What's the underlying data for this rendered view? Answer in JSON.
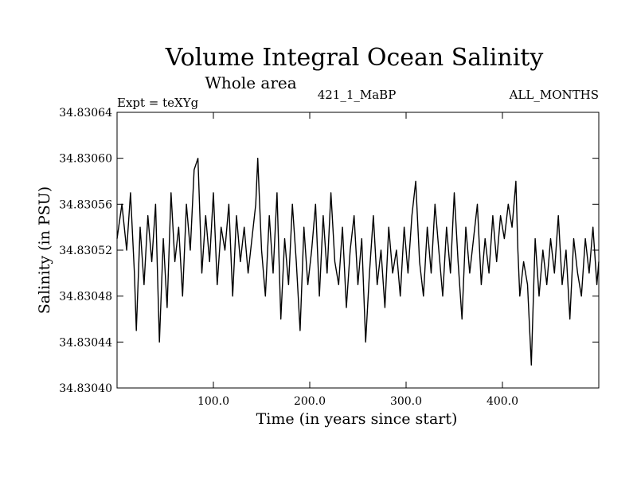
{
  "chart_data": {
    "type": "line",
    "title": "Volume Integral Ocean Salinity",
    "subtitle": "Whole area",
    "header_left": "Expt = teXYg",
    "header_center": "421_1_MaBP",
    "header_right": "ALL_MONTHS",
    "xlabel": "Time (in years since start)",
    "ylabel": "Salinity (in PSU)",
    "xlim": [
      0,
      500
    ],
    "ylim": [
      34.8304,
      34.83064
    ],
    "xticks": [
      100,
      200,
      300,
      400
    ],
    "xtick_labels": [
      "100.0",
      "200.0",
      "300.0",
      "400.0"
    ],
    "yticks": [
      34.8304,
      34.83044,
      34.83048,
      34.83052,
      34.83056,
      34.8306,
      34.83064
    ],
    "ytick_labels": [
      "34.83040",
      "34.83044",
      "34.83048",
      "34.83052",
      "34.83056",
      "34.83060",
      "34.83064"
    ],
    "grid": false,
    "series": [
      {
        "color": "#000000",
        "x": [
          0,
          5,
          10,
          14,
          18,
          20,
          24,
          28,
          32,
          36,
          40,
          44,
          48,
          52,
          56,
          60,
          64,
          68,
          72,
          76,
          80,
          84,
          88,
          92,
          96,
          100,
          104,
          108,
          112,
          116,
          120,
          124,
          128,
          132,
          136,
          140,
          144,
          146,
          150,
          154,
          158,
          162,
          166,
          170,
          174,
          178,
          182,
          186,
          190,
          194,
          198,
          202,
          206,
          210,
          214,
          218,
          222,
          226,
          230,
          234,
          238,
          242,
          246,
          250,
          254,
          258,
          262,
          266,
          270,
          274,
          278,
          282,
          286,
          290,
          294,
          298,
          302,
          306,
          310,
          314,
          318,
          322,
          326,
          330,
          334,
          338,
          342,
          346,
          350,
          354,
          358,
          362,
          366,
          370,
          374,
          378,
          382,
          386,
          390,
          394,
          398,
          402,
          406,
          410,
          414,
          416,
          418,
          422,
          426,
          430,
          434,
          438,
          442,
          446,
          450,
          454,
          458,
          462,
          466,
          470,
          474,
          478,
          482,
          486,
          490,
          494,
          498,
          500
        ],
        "y": [
          34.83053,
          34.83056,
          34.83052,
          34.83057,
          34.8305,
          34.83045,
          34.83054,
          34.83049,
          34.83055,
          34.83051,
          34.83056,
          34.83044,
          34.83053,
          34.83047,
          34.83057,
          34.83051,
          34.83054,
          34.83048,
          34.83056,
          34.83052,
          34.83059,
          34.8306,
          34.8305,
          34.83055,
          34.83051,
          34.83057,
          34.83049,
          34.83054,
          34.83052,
          34.83056,
          34.83048,
          34.83055,
          34.83051,
          34.83054,
          34.8305,
          34.83053,
          34.83056,
          34.8306,
          34.83052,
          34.83048,
          34.83055,
          34.8305,
          34.83057,
          34.83046,
          34.83053,
          34.83049,
          34.83056,
          34.83051,
          34.83045,
          34.83054,
          34.83049,
          34.83052,
          34.83056,
          34.83048,
          34.83055,
          34.8305,
          34.83057,
          34.83051,
          34.83049,
          34.83054,
          34.83047,
          34.83052,
          34.83055,
          34.83049,
          34.83053,
          34.83044,
          34.8305,
          34.83055,
          34.83049,
          34.83052,
          34.83047,
          34.83054,
          34.8305,
          34.83052,
          34.83048,
          34.83054,
          34.8305,
          34.83055,
          34.83058,
          34.83051,
          34.83048,
          34.83054,
          34.8305,
          34.83056,
          34.83052,
          34.83048,
          34.83054,
          34.8305,
          34.83057,
          34.83051,
          34.83046,
          34.83054,
          34.8305,
          34.83053,
          34.83056,
          34.83049,
          34.83053,
          34.8305,
          34.83055,
          34.83051,
          34.83055,
          34.83053,
          34.83056,
          34.83054,
          34.83058,
          34.83052,
          34.83048,
          34.83051,
          34.83049,
          34.83042,
          34.83053,
          34.83048,
          34.83052,
          34.83049,
          34.83053,
          34.8305,
          34.83055,
          34.83049,
          34.83052,
          34.83046,
          34.83053,
          34.8305,
          34.83048,
          34.83053,
          34.8305,
          34.83054,
          34.83049,
          34.83051
        ]
      }
    ]
  }
}
